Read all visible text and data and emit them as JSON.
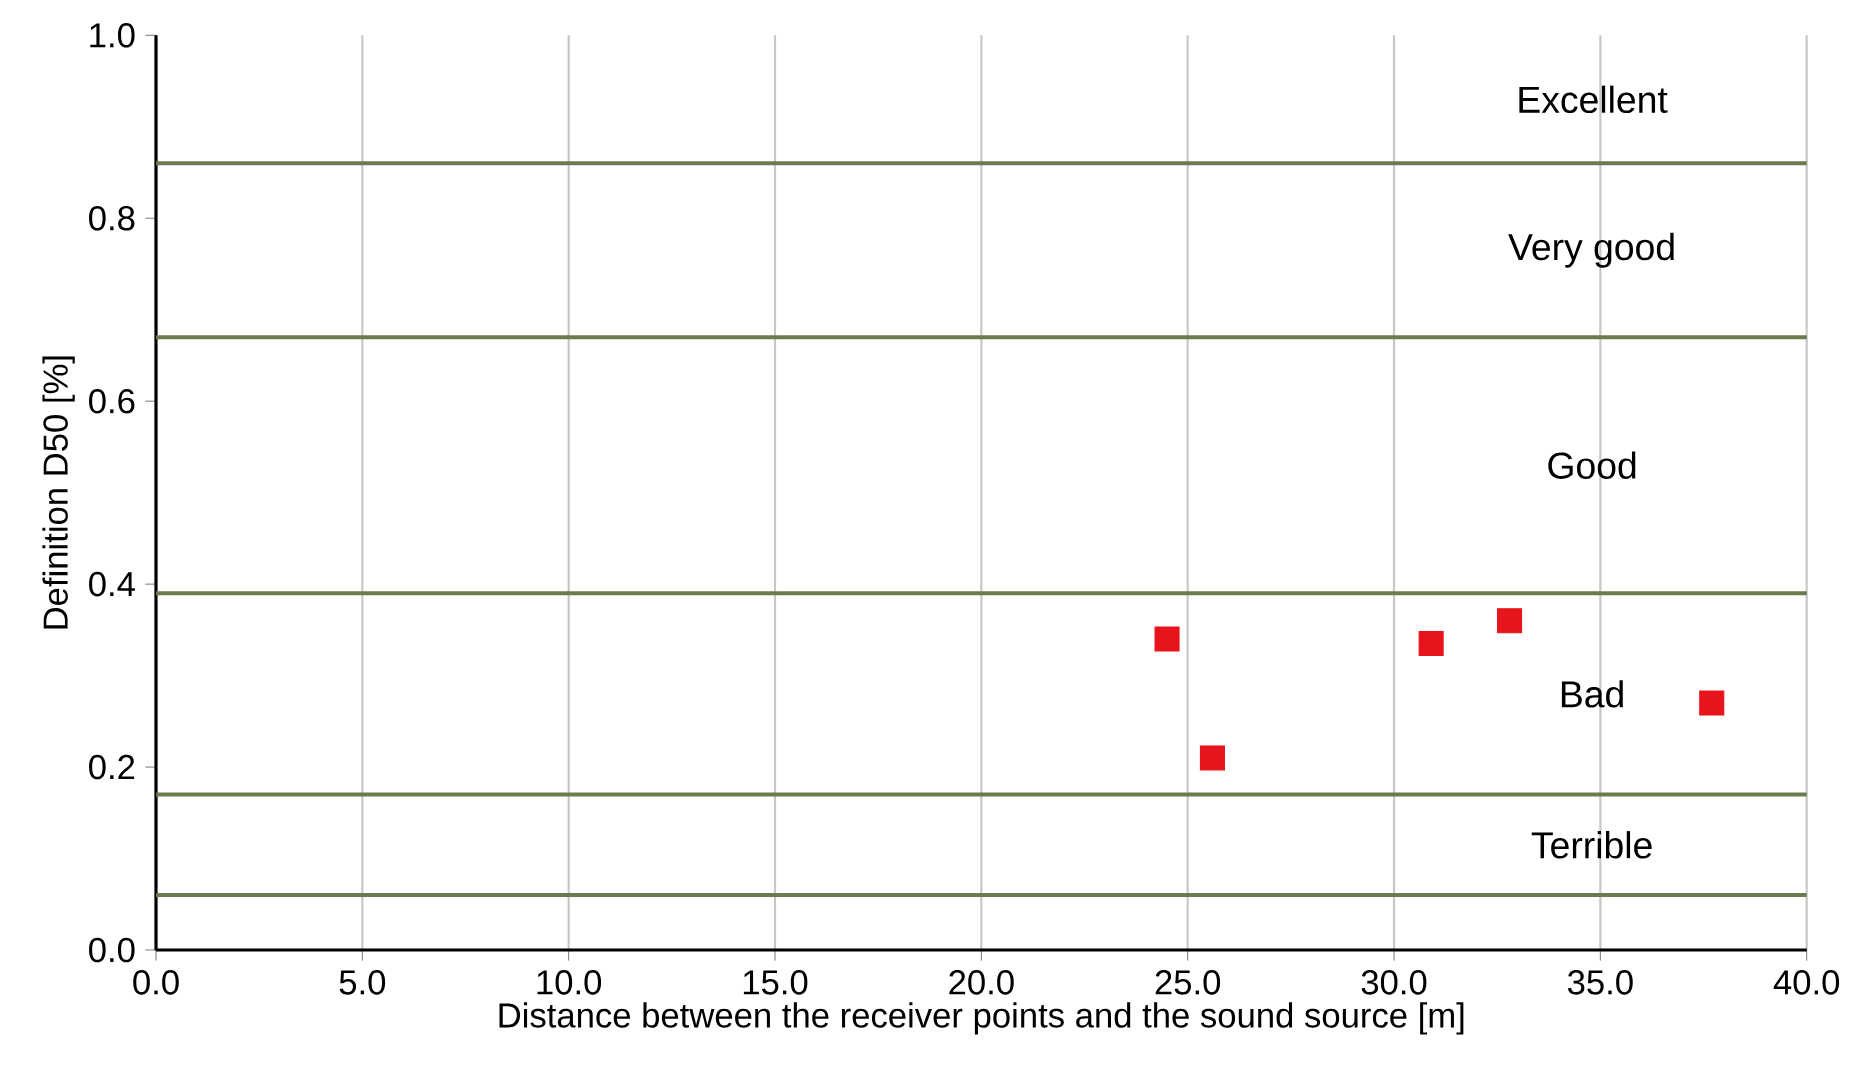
{
  "chart_data": {
    "type": "scatter",
    "xlabel": "Distance between the receiver points and the sound source [m]",
    "ylabel": "Definition D50 [%]",
    "xlim": [
      0,
      40
    ],
    "ylim": [
      0,
      1
    ],
    "xticks": [
      {
        "value": 0,
        "label": "0.0"
      },
      {
        "value": 5,
        "label": "5.0"
      },
      {
        "value": 10,
        "label": "10.0"
      },
      {
        "value": 15,
        "label": "15.0"
      },
      {
        "value": 20,
        "label": "20.0"
      },
      {
        "value": 25,
        "label": "25.0"
      },
      {
        "value": 30,
        "label": "30.0"
      },
      {
        "value": 35,
        "label": "35.0"
      },
      {
        "value": 40,
        "label": "40.0"
      }
    ],
    "yticks": [
      {
        "value": 0,
        "label": "0.0"
      },
      {
        "value": 0.2,
        "label": "0.2"
      },
      {
        "value": 0.4,
        "label": "0.4"
      },
      {
        "value": 0.6,
        "label": "0.6"
      },
      {
        "value": 0.8,
        "label": "0.8"
      },
      {
        "value": 1,
        "label": "1.0"
      }
    ],
    "grid": "x",
    "marker": "square",
    "series": [
      {
        "color": "#e8141c",
        "x": [
          24.5,
          25.6,
          30.9,
          32.8,
          37.7
        ],
        "values": [
          0.34,
          0.21,
          0.335,
          0.36,
          0.27
        ]
      }
    ],
    "ref_lines": [
      {
        "axis": "y",
        "value": 0.86,
        "color": "#6b7a4f"
      },
      {
        "axis": "y",
        "value": 0.67,
        "color": "#6b7a4f"
      },
      {
        "axis": "y",
        "value": 0.39,
        "color": "#6b7a4f"
      },
      {
        "axis": "y",
        "value": 0.17,
        "color": "#6b7a4f"
      },
      {
        "axis": "y",
        "value": 0.06,
        "color": "#6b7a4f"
      }
    ],
    "annotations": [
      "Excellent",
      "Very good",
      "Good",
      "Bad",
      "Terrible"
    ]
  }
}
